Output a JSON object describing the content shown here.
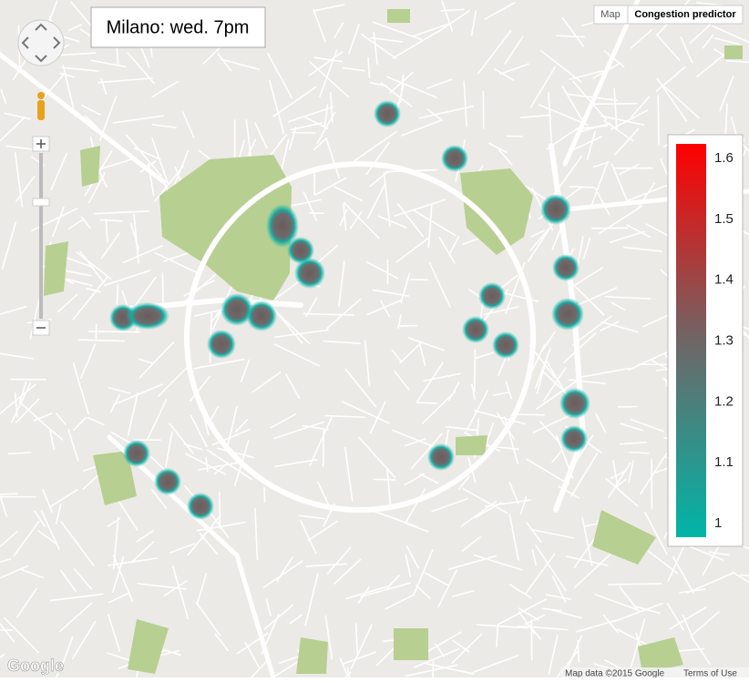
{
  "header": {
    "title": "Milano: wed. 7pm"
  },
  "map_type": {
    "map": "Map",
    "layer": "Congestion predictor"
  },
  "legend": {
    "lim": [
      1,
      1.6
    ],
    "ticks": [
      1,
      1.1,
      1.2,
      1.3,
      1.4,
      1.5,
      1.6
    ],
    "colors": [
      "#00b5a8",
      "#6f6666",
      "#ff0000"
    ]
  },
  "footer": {
    "logo": "Google",
    "attribution": "Map data ©2015 Google",
    "terms": "Terms of Use"
  }
}
